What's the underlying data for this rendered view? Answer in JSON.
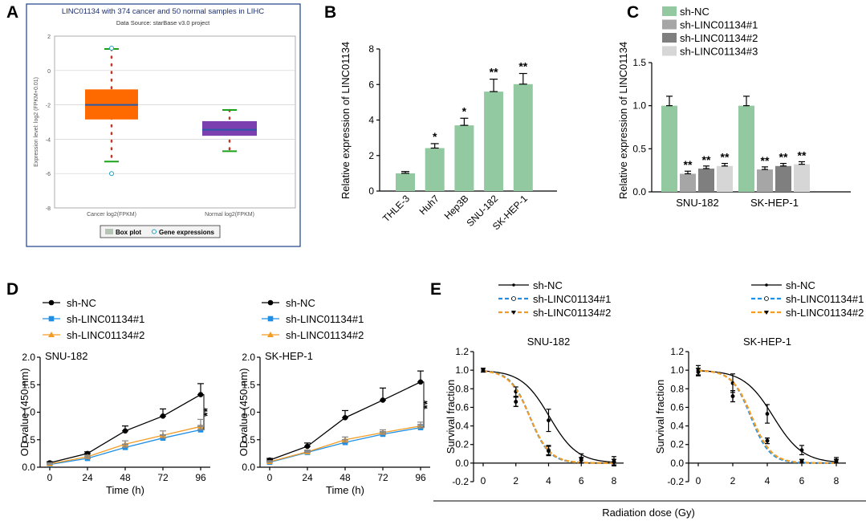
{
  "panel_labels": [
    "A",
    "B",
    "C",
    "D",
    "E"
  ],
  "colors": {
    "green": "#92c9a1",
    "grey1": "#a6a6a6",
    "grey2": "#7f7f7f",
    "grey3": "#d6d6d6",
    "blue": "#1f8fe6",
    "orange": "#f39c24",
    "black": "#000000",
    "box_orange": "#ff6a00",
    "box_purple": "#7b3fb0"
  },
  "chart_data": [
    {
      "id": "A",
      "type": "box",
      "title": "LINC01134 with 374 cancer and 50 normal samples in LIHC",
      "subtitle": "Data Source: starBase v3.0 project",
      "ylabel": "Expression level: log2 (FPKM+0.01)",
      "ylim": [
        -8,
        2
      ],
      "yticks": [
        "2",
        "0",
        "-2",
        "-4",
        "-6",
        "-8"
      ],
      "categories": [
        "Cancer log2(FPKM)",
        "Normal log2(FPKM)"
      ],
      "boxes": [
        {
          "name": "Cancer log2(FPKM)",
          "min": -5.3,
          "q1": -2.85,
          "median": -2.0,
          "q3": -1.1,
          "max": 1.25,
          "outliers": [
            1.3,
            -6.0
          ]
        },
        {
          "name": "Normal log2(FPKM)",
          "min": -4.7,
          "q1": -3.8,
          "median": -3.45,
          "q3": -2.95,
          "max": -2.3,
          "outliers": []
        }
      ],
      "legend": [
        "Box plot",
        "Gene expressions"
      ]
    },
    {
      "id": "B",
      "type": "bar",
      "ylabel": "Relative expression of LINC01134",
      "ylim": [
        0,
        8
      ],
      "yticks": [
        "0",
        "2",
        "4",
        "6",
        "8"
      ],
      "categories": [
        "THLE-3",
        "Huh7",
        "Hep3B",
        "SNU-182",
        "SK-HEP-1"
      ],
      "values": [
        1.0,
        2.42,
        3.7,
        5.6,
        6.02
      ],
      "errors": [
        0.1,
        0.25,
        0.4,
        0.7,
        0.6
      ],
      "annotations": [
        "",
        "*",
        "*",
        "**",
        "**"
      ]
    },
    {
      "id": "C",
      "type": "grouped-bar",
      "ylabel": "Relative expression of LINC01134",
      "ylim": [
        0,
        1.5
      ],
      "yticks": [
        "0.0",
        "0.5",
        "1.0",
        "1.5"
      ],
      "categories": [
        "SNU-182",
        "SK-HEP-1"
      ],
      "series": [
        {
          "name": "sh-NC",
          "values": [
            1.0,
            1.0
          ],
          "errors": [
            0.11,
            0.11
          ],
          "annotations": [
            "",
            ""
          ]
        },
        {
          "name": "sh-LINC01134#1",
          "values": [
            0.21,
            0.26
          ],
          "errors": [
            0.03,
            0.03
          ],
          "annotations": [
            "**",
            "**"
          ]
        },
        {
          "name": "sh-LINC01134#2",
          "values": [
            0.27,
            0.3
          ],
          "errors": [
            0.03,
            0.03
          ],
          "annotations": [
            "**",
            "**"
          ]
        },
        {
          "name": "sh-LINC01134#3",
          "values": [
            0.3,
            0.32
          ],
          "errors": [
            0.03,
            0.03
          ],
          "annotations": [
            "**",
            "**"
          ]
        }
      ]
    },
    {
      "id": "D1",
      "type": "line",
      "title": "SNU-182",
      "xlabel": "Time (h)",
      "ylabel": "OD value (450 nm)",
      "x": [
        0,
        24,
        48,
        72,
        96
      ],
      "xticks": [
        "0",
        "24",
        "48",
        "72",
        "96"
      ],
      "ylim": [
        0,
        2.0
      ],
      "yticks": [
        "0.0",
        "0.5",
        "1.0",
        "1.5",
        "2.0"
      ],
      "series": [
        {
          "name": "sh-NC",
          "values": [
            0.08,
            0.25,
            0.66,
            0.93,
            1.32
          ],
          "errors": [
            0.02,
            0.03,
            0.09,
            0.13,
            0.2
          ]
        },
        {
          "name": "sh-LINC01134#1",
          "values": [
            0.05,
            0.16,
            0.36,
            0.53,
            0.68
          ],
          "errors": [
            0.02,
            0.03,
            0.05,
            0.06,
            0.08
          ]
        },
        {
          "name": "sh-LINC01134#2",
          "values": [
            0.06,
            0.19,
            0.42,
            0.58,
            0.74
          ],
          "errors": [
            0.02,
            0.03,
            0.06,
            0.08,
            0.13
          ]
        }
      ],
      "significance": "**"
    },
    {
      "id": "D2",
      "type": "line",
      "title": "SK-HEP-1",
      "xlabel": "Time (h)",
      "ylabel": "OD value (450 nm)",
      "x": [
        0,
        24,
        48,
        72,
        96
      ],
      "xticks": [
        "0",
        "24",
        "48",
        "72",
        "96"
      ],
      "ylim": [
        0,
        2.0
      ],
      "yticks": [
        "0.0",
        "0.5",
        "1.0",
        "1.5",
        "2.0"
      ],
      "series": [
        {
          "name": "sh-NC",
          "values": [
            0.13,
            0.38,
            0.9,
            1.22,
            1.55
          ],
          "errors": [
            0.03,
            0.06,
            0.13,
            0.22,
            0.2
          ]
        },
        {
          "name": "sh-LINC01134#1",
          "values": [
            0.09,
            0.27,
            0.45,
            0.6,
            0.72
          ],
          "errors": [
            0.02,
            0.03,
            0.05,
            0.05,
            0.06
          ]
        },
        {
          "name": "sh-LINC01134#2",
          "values": [
            0.1,
            0.28,
            0.5,
            0.63,
            0.75
          ],
          "errors": [
            0.02,
            0.03,
            0.05,
            0.05,
            0.07
          ]
        }
      ],
      "significance": "**"
    },
    {
      "id": "E1",
      "type": "line",
      "title": "SNU-182",
      "ylabel": "Survival fraction",
      "x": [
        0,
        2,
        4,
        6,
        8
      ],
      "xticks": [
        "0",
        "2",
        "4",
        "6",
        "8"
      ],
      "ylim": [
        -0.2,
        1.2
      ],
      "yticks": [
        "-0.2",
        "0.0",
        "0.2",
        "0.4",
        "0.6",
        "0.8",
        "1.0",
        "1.2"
      ],
      "series": [
        {
          "name": "sh-NC",
          "values": [
            1.0,
            0.77,
            0.46,
            0.05,
            0.02
          ],
          "errors": [
            0.02,
            0.05,
            0.12,
            0.05,
            0.05
          ]
        },
        {
          "name": "sh-LINC01134#1",
          "values": [
            1.0,
            0.66,
            0.14,
            0.03,
            0.01
          ],
          "errors": [
            0.02,
            0.05,
            0.05,
            0.03,
            0.03
          ]
        },
        {
          "name": "sh-LINC01134#2",
          "values": [
            1.0,
            0.66,
            0.13,
            0.03,
            0.01
          ],
          "errors": [
            0.02,
            0.05,
            0.05,
            0.03,
            0.03
          ]
        }
      ]
    },
    {
      "id": "E2",
      "type": "line",
      "title": "SK-HEP-1",
      "ylabel": "Survival fraction",
      "x": [
        0,
        2,
        4,
        6,
        8
      ],
      "xticks": [
        "0",
        "2",
        "4",
        "6",
        "8"
      ],
      "ylim": [
        -0.2,
        1.2
      ],
      "yticks": [
        "-0.2",
        "0.0",
        "0.2",
        "0.4",
        "0.6",
        "0.8",
        "1.0",
        "1.2"
      ],
      "series": [
        {
          "name": "sh-NC",
          "values": [
            1.0,
            0.86,
            0.53,
            0.14,
            0.03
          ],
          "errors": [
            0.05,
            0.1,
            0.1,
            0.05,
            0.03
          ]
        },
        {
          "name": "sh-LINC01134#1",
          "values": [
            0.98,
            0.72,
            0.24,
            0.02,
            0.02
          ],
          "errors": [
            0.04,
            0.06,
            0.03,
            0.02,
            0.02
          ]
        },
        {
          "name": "sh-LINC01134#2",
          "values": [
            0.98,
            0.72,
            0.24,
            0.02,
            0.02
          ],
          "errors": [
            0.04,
            0.06,
            0.03,
            0.02,
            0.02
          ]
        }
      ]
    }
  ],
  "shared_xlabel_E": "Radiation dose (Gy)"
}
